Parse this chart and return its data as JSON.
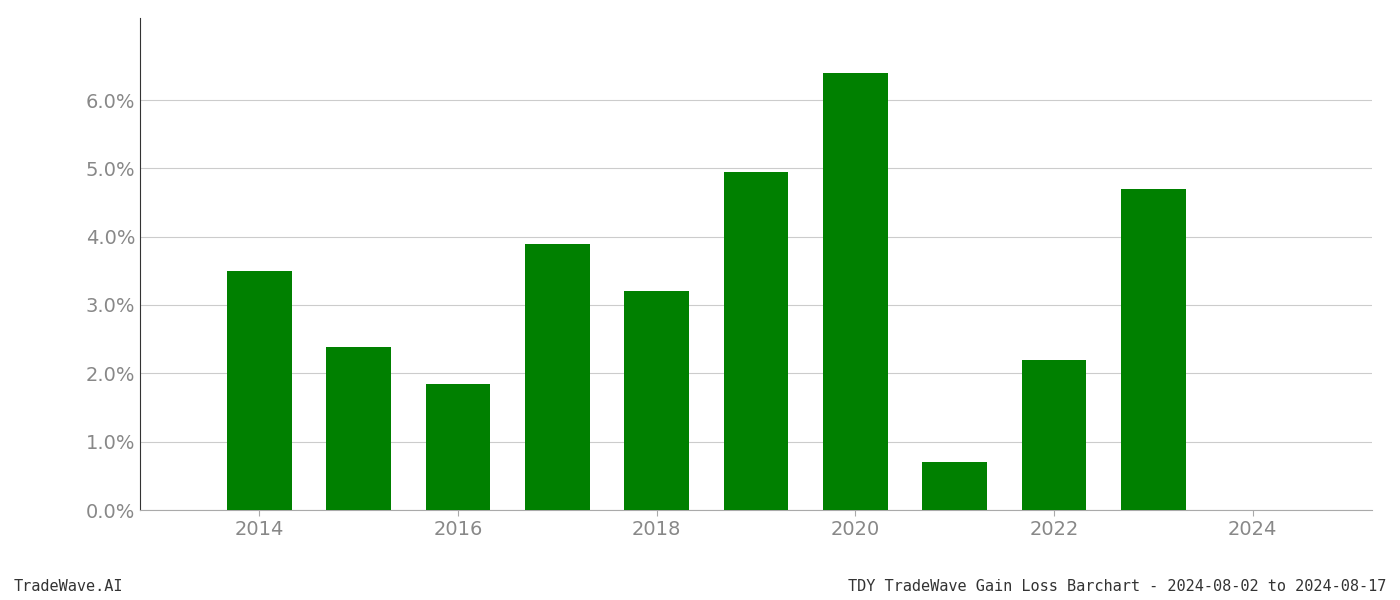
{
  "years": [
    2014,
    2015,
    2016,
    2017,
    2018,
    2019,
    2020,
    2021,
    2022,
    2023
  ],
  "values": [
    0.035,
    0.0238,
    0.0185,
    0.039,
    0.032,
    0.0495,
    0.064,
    0.007,
    0.022,
    0.047
  ],
  "bar_color": "#008000",
  "background_color": "#ffffff",
  "grid_color": "#cccccc",
  "footer_left": "TradeWave.AI",
  "footer_right": "TDY TradeWave Gain Loss Barchart - 2024-08-02 to 2024-08-17",
  "ylim": [
    0,
    0.072
  ],
  "yticks": [
    0.0,
    0.01,
    0.02,
    0.03,
    0.04,
    0.05,
    0.06
  ],
  "xtick_years": [
    2014,
    2016,
    2018,
    2020,
    2022,
    2024
  ],
  "xlim": [
    2012.8,
    2025.2
  ],
  "bar_width": 0.65,
  "footer_fontsize": 11,
  "tick_fontsize": 14,
  "tick_color": "#888888",
  "spine_color": "#aaaaaa",
  "left_spine_color": "#333333"
}
